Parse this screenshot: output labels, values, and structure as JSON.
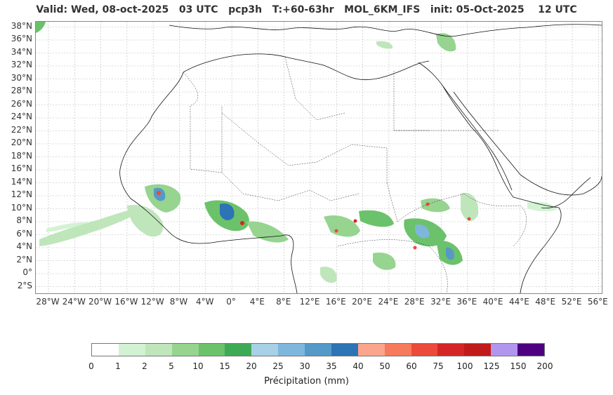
{
  "header": {
    "title": "Valid: Wed, 08-oct-2025   03 UTC   pcp3h   T:+60-63hr   MOL_6KM_IFS   init: 05-Oct-2025    12 UTC"
  },
  "map": {
    "lat_labels": [
      "38°N",
      "36°N",
      "34°N",
      "32°N",
      "30°N",
      "28°N",
      "26°N",
      "24°N",
      "22°N",
      "20°N",
      "18°N",
      "16°N",
      "14°N",
      "12°N",
      "10°N",
      "8°N",
      "6°N",
      "4°N",
      "2°N",
      "0°",
      "2°S"
    ],
    "lon_labels": [
      "28°W",
      "24°W",
      "20°W",
      "16°W",
      "12°W",
      "8°W",
      "4°W",
      "0°",
      "4°E",
      "8°E",
      "12°E",
      "16°E",
      "20°E",
      "24°E",
      "28°E",
      "32°E",
      "36°E",
      "40°E",
      "44°E",
      "48°E",
      "52°E",
      "56°E"
    ]
  },
  "colorbar": {
    "label": "Précipitation (mm)",
    "ticks": [
      "0",
      "1",
      "2",
      "5",
      "10",
      "15",
      "20",
      "25",
      "30",
      "35",
      "40",
      "50",
      "60",
      "75",
      "100",
      "125",
      "150",
      "200"
    ],
    "colors": [
      "#ffffff",
      "#d3f2d3",
      "#bfe6bb",
      "#96d490",
      "#6bc26b",
      "#3faa55",
      "#a8d0e6",
      "#7fb6dc",
      "#5499c8",
      "#2c74b5",
      "#fba58c",
      "#f67a5c",
      "#ec4a3a",
      "#d42725",
      "#c01a1a",
      "#b096ee",
      "#4d0080"
    ]
  }
}
